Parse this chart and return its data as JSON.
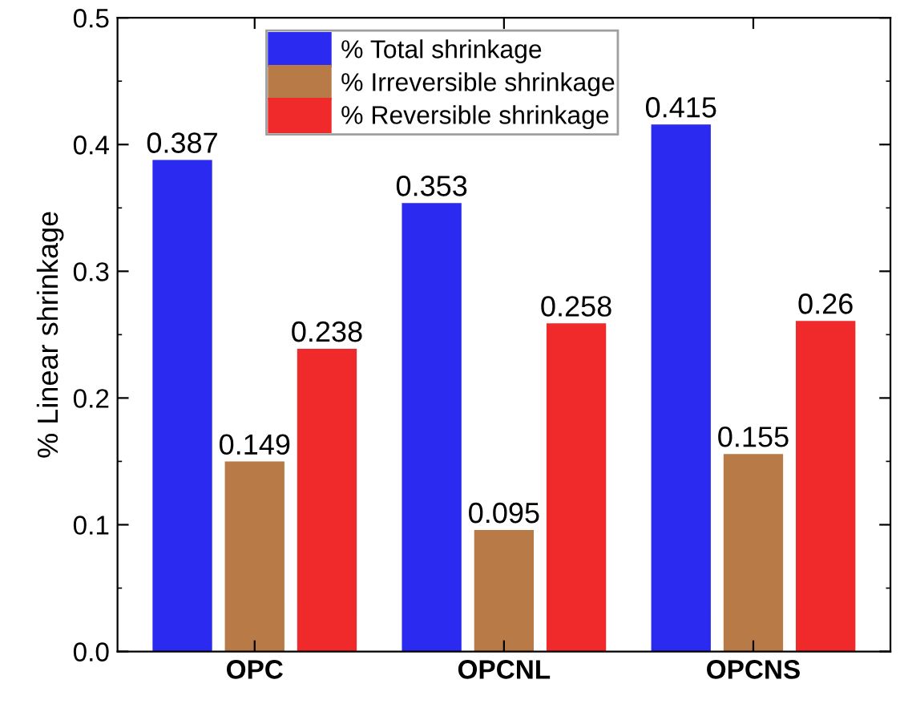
{
  "chart_data": {
    "type": "bar",
    "ylabel": "% Linear shrinkage",
    "categories": [
      "OPC",
      "OPCNL",
      "OPCNS"
    ],
    "series": [
      {
        "name": "% Total shrinkage",
        "color": "#2a2af0",
        "values": [
          0.387,
          0.353,
          0.415
        ]
      },
      {
        "name": "% Irreversible shrinkage",
        "color": "#b87a46",
        "values": [
          0.149,
          0.095,
          0.155
        ]
      },
      {
        "name": "% Reversible shrinkage",
        "color": "#f02a2a",
        "values": [
          0.238,
          0.258,
          0.26
        ]
      }
    ],
    "ylim": [
      0,
      0.5
    ],
    "yticks": [
      {
        "value": 0,
        "label": "0.0"
      },
      {
        "value": 0.1,
        "label": "0.1"
      },
      {
        "value": 0.2,
        "label": "0.2"
      },
      {
        "value": 0.3,
        "label": "0.3"
      },
      {
        "value": 0.4,
        "label": "0.4"
      },
      {
        "value": 0.5,
        "label": "0.5"
      }
    ],
    "data_labels": true,
    "legend": "top",
    "grid": false
  }
}
